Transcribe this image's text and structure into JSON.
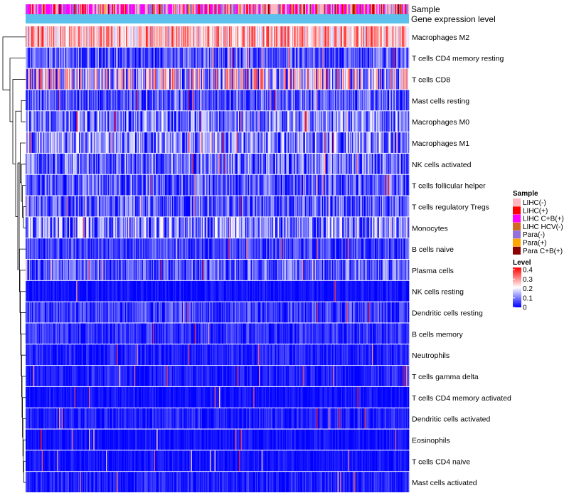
{
  "chart_data": {
    "type": "heatmap",
    "annotation_tracks": [
      "Sample",
      "Gene expression level"
    ],
    "rows": [
      "Macrophages M2",
      "T cells CD4 memory resting",
      "T cells CD8",
      "Mast cells resting",
      "Macrophages M0",
      "Macrophages M1",
      "NK cells activated",
      "T cells follicular helper",
      "T cells regulatory  Tregs",
      "Monocytes",
      "B cells naive",
      "Plasma cells",
      "NK cells resting",
      "Dendritic cells resting",
      "B cells memory",
      "Neutrophils",
      "T cells gamma delta",
      "T cells CD4 memory activated",
      "Dendritic cells activated",
      "Eosinophils",
      "T cells CD4 naive",
      "Mast cells activated"
    ],
    "row_mean_level": [
      0.26,
      0.06,
      0.15,
      0.06,
      0.08,
      0.09,
      0.07,
      0.06,
      0.06,
      0.09,
      0.04,
      0.06,
      0.01,
      0.04,
      0.03,
      0.02,
      0.02,
      0.01,
      0.02,
      0.01,
      0.01,
      0.02
    ],
    "n_samples": 424,
    "sample_legend": {
      "title": "Sample",
      "entries": [
        {
          "label": "LIHC(-)",
          "color": "#ffb6c1"
        },
        {
          "label": "LIHC(+)",
          "color": "#ff0000"
        },
        {
          "label": "LIHC C+B(+)",
          "color": "#ff00ff"
        },
        {
          "label": "LIHC HCV(-)",
          "color": "#d2691e"
        },
        {
          "label": "Para(-)",
          "color": "#9370db"
        },
        {
          "label": "Para(+)",
          "color": "#ffa500"
        },
        {
          "label": "Para C+B(+)",
          "color": "#8b0000"
        }
      ]
    },
    "level_legend": {
      "title": "Level",
      "ticks": [
        "0.4",
        "0.3",
        "0.2",
        "0.1",
        "0"
      ],
      "range": [
        0,
        0.4
      ],
      "colors": [
        "#0000ff",
        "#ffffff",
        "#ff0000"
      ]
    },
    "expression_track_color": "#5bc0eb",
    "dendrogram": "hierarchical clustering of rows (left)"
  }
}
